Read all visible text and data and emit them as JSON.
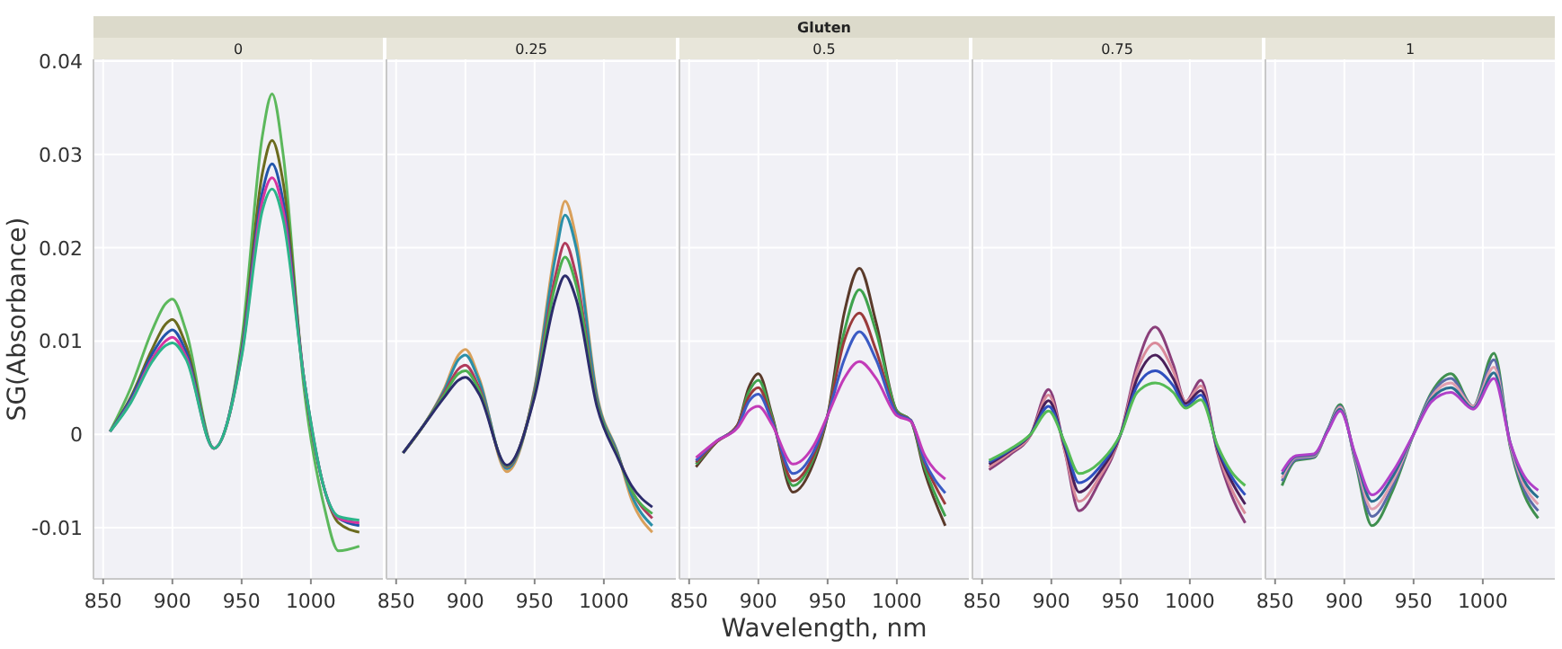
{
  "chart_data": [
    {
      "type": "line",
      "title": "0",
      "annotations": [
        "Gluten"
      ],
      "ylabel": "SG(Absorbance)",
      "x": [
        855,
        870,
        885,
        895,
        900,
        910,
        930,
        950,
        965,
        972,
        980,
        995,
        1010,
        1020,
        1035
      ],
      "xlim": [
        843,
        1052
      ],
      "xticks": [
        850,
        900,
        950,
        1000
      ],
      "ylim": [
        -0.0155,
        0.0402
      ],
      "yticks": [
        -0.01,
        0,
        0.01,
        0.02,
        0.03,
        0.04
      ],
      "grid": true,
      "series": [
        {
          "color": "#5cb85c",
          "values": [
            0.0003,
            0.005,
            0.011,
            0.014,
            0.0145,
            0.011,
            -0.0015,
            0.01,
            0.032,
            0.0365,
            0.03,
            0.005,
            -0.008,
            -0.0125,
            -0.012
          ]
        },
        {
          "color": "#6b6b1f",
          "values": [
            0.0003,
            0.004,
            0.009,
            0.0118,
            0.0123,
            0.0095,
            -0.0015,
            0.009,
            0.028,
            0.0315,
            0.027,
            0.006,
            -0.006,
            -0.0095,
            -0.0105
          ]
        },
        {
          "color": "#2255aa",
          "values": [
            0.0003,
            0.0038,
            0.0085,
            0.0107,
            0.0112,
            0.0088,
            -0.0015,
            0.0088,
            0.026,
            0.029,
            0.025,
            0.006,
            -0.006,
            -0.009,
            -0.0098
          ]
        },
        {
          "color": "#d633a0",
          "values": [
            0.0003,
            0.0035,
            0.008,
            0.01,
            0.0104,
            0.0083,
            -0.0015,
            0.0085,
            0.025,
            0.0275,
            0.024,
            0.006,
            -0.006,
            -0.009,
            -0.0095
          ]
        },
        {
          "color": "#2bb58a",
          "values": [
            0.0003,
            0.0034,
            0.0077,
            0.0095,
            0.0098,
            0.008,
            -0.0015,
            0.0083,
            0.024,
            0.0263,
            0.023,
            0.006,
            -0.006,
            -0.0088,
            -0.0092
          ]
        }
      ]
    },
    {
      "type": "line",
      "title": "0.25",
      "tick_labels": "x",
      "x": [
        855,
        870,
        885,
        895,
        900,
        910,
        930,
        950,
        965,
        972,
        980,
        995,
        1010,
        1020,
        1035
      ],
      "xlim": [
        843,
        1052
      ],
      "xticks": [
        850,
        900,
        950,
        1000
      ],
      "ylim": [
        -0.0155,
        0.0402
      ],
      "yticks": [
        -0.01,
        0,
        0.01,
        0.02,
        0.03,
        0.04
      ],
      "grid": true,
      "series": [
        {
          "color": "#d9a05b",
          "values": [
            -0.002,
            0.001,
            0.005,
            0.0085,
            0.0091,
            0.006,
            -0.004,
            0.005,
            0.02,
            0.025,
            0.021,
            0.0043,
            -0.002,
            -0.007,
            -0.0105
          ]
        },
        {
          "color": "#2a8fa8",
          "values": [
            -0.002,
            0.001,
            0.0048,
            0.008,
            0.0085,
            0.0057,
            -0.0037,
            0.0048,
            0.019,
            0.0235,
            0.02,
            0.004,
            -0.002,
            -0.0065,
            -0.0098
          ]
        },
        {
          "color": "#b03a5b",
          "values": [
            -0.002,
            0.001,
            0.0045,
            0.007,
            0.0074,
            0.005,
            -0.0035,
            0.0045,
            0.017,
            0.0205,
            0.017,
            0.0035,
            -0.0022,
            -0.006,
            -0.009
          ]
        },
        {
          "color": "#4caf50",
          "values": [
            -0.002,
            0.001,
            0.0043,
            0.0065,
            0.0068,
            0.0047,
            -0.0034,
            0.0043,
            0.016,
            0.019,
            0.016,
            0.0033,
            -0.0023,
            -0.006,
            -0.0085
          ]
        },
        {
          "color": "#2c2c6c",
          "values": [
            -0.002,
            0.001,
            0.004,
            0.0058,
            0.0061,
            0.0043,
            -0.0033,
            0.004,
            0.0145,
            0.017,
            0.0145,
            0.003,
            -0.0025,
            -0.0055,
            -0.0078
          ]
        }
      ]
    },
    {
      "type": "line",
      "title": "0.5",
      "xlabel": "Wavelength, nm",
      "tick_labels": "x",
      "x": [
        855,
        870,
        885,
        893,
        900,
        910,
        925,
        940,
        950,
        962,
        973,
        985,
        1000,
        1010,
        1020,
        1035
      ],
      "xlim": [
        843,
        1052
      ],
      "xticks": [
        850,
        900,
        950,
        1000
      ],
      "ylim": [
        -0.0155,
        0.0402
      ],
      "yticks": [
        -0.01,
        0,
        0.01,
        0.02,
        0.03,
        0.04
      ],
      "grid": true,
      "series": [
        {
          "color": "#5a3a2a",
          "values": [
            -0.0035,
            -0.0008,
            0.001,
            0.005,
            0.0065,
            0.002,
            -0.0062,
            -0.003,
            0.002,
            0.013,
            0.0178,
            0.012,
            0.0025,
            0.0015,
            -0.004,
            -0.0098
          ]
        },
        {
          "color": "#3fa34d",
          "values": [
            -0.0032,
            -0.0008,
            0.001,
            0.0045,
            0.0058,
            0.0018,
            -0.0055,
            -0.0025,
            0.002,
            0.011,
            0.0155,
            0.011,
            0.0025,
            0.0015,
            -0.0035,
            -0.0088
          ]
        },
        {
          "color": "#9a3b3b",
          "values": [
            -0.003,
            -0.0008,
            0.001,
            0.004,
            0.005,
            0.0015,
            -0.005,
            -0.0022,
            0.002,
            0.01,
            0.013,
            0.009,
            0.0023,
            0.0015,
            -0.003,
            -0.0075
          ]
        },
        {
          "color": "#3b5bc4",
          "values": [
            -0.0028,
            -0.0007,
            0.0008,
            0.0035,
            0.0043,
            0.0013,
            -0.0042,
            -0.0018,
            0.002,
            0.008,
            0.011,
            0.008,
            0.0022,
            0.0015,
            -0.0028,
            -0.0063
          ]
        },
        {
          "color": "#c23bb8",
          "values": [
            -0.0025,
            -0.0007,
            0.0007,
            0.0025,
            0.003,
            0.001,
            -0.0032,
            -0.0012,
            0.002,
            0.006,
            0.0078,
            0.006,
            0.002,
            0.0014,
            -0.0022,
            -0.0048
          ]
        }
      ]
    },
    {
      "type": "line",
      "title": "0.75",
      "tick_labels": "x",
      "x": [
        855,
        870,
        885,
        898,
        910,
        920,
        935,
        950,
        962,
        975,
        988,
        997,
        1008,
        1020,
        1030,
        1040
      ],
      "xlim": [
        843,
        1052
      ],
      "xticks": [
        850,
        900,
        950,
        1000
      ],
      "ylim": [
        -0.0155,
        0.0402
      ],
      "yticks": [
        -0.01,
        0,
        0.01,
        0.02,
        0.03,
        0.04
      ],
      "grid": true,
      "series": [
        {
          "color": "#8a3f7a",
          "values": [
            -0.0038,
            -0.0022,
            -0.0001,
            0.0048,
            -0.002,
            -0.0082,
            -0.005,
            0,
            0.0075,
            0.0115,
            0.0075,
            0.0035,
            0.0058,
            -0.002,
            -0.0065,
            -0.0095
          ]
        },
        {
          "color": "#d98a9a",
          "values": [
            -0.0035,
            -0.002,
            -0.0001,
            0.0042,
            -0.002,
            -0.0072,
            -0.0045,
            0,
            0.0068,
            0.0098,
            0.0068,
            0.0035,
            0.0052,
            -0.0018,
            -0.0058,
            -0.0085
          ]
        },
        {
          "color": "#4a1f5a",
          "values": [
            -0.0032,
            -0.0018,
            0,
            0.0036,
            -0.0015,
            -0.0062,
            -0.004,
            0,
            0.006,
            0.0085,
            0.006,
            0.0033,
            0.0047,
            -0.0016,
            -0.005,
            -0.0075
          ]
        },
        {
          "color": "#2f4fbf",
          "values": [
            -0.003,
            -0.0017,
            0,
            0.003,
            -0.0012,
            -0.0052,
            -0.0035,
            0,
            0.0052,
            0.0068,
            0.0052,
            0.003,
            0.0042,
            -0.0014,
            -0.0045,
            -0.0065
          ]
        },
        {
          "color": "#55bb55",
          "values": [
            -0.0028,
            -0.0016,
            0,
            0.0025,
            -0.001,
            -0.0042,
            -0.003,
            0,
            0.0045,
            0.0055,
            0.0045,
            0.0028,
            0.0037,
            -0.0012,
            -0.004,
            -0.0055
          ]
        }
      ]
    },
    {
      "type": "line",
      "title": "1",
      "tick_labels": "x",
      "x": [
        855,
        865,
        878,
        888,
        897,
        908,
        920,
        935,
        950,
        963,
        977,
        993,
        1008,
        1020,
        1030,
        1040
      ],
      "xlim": [
        843,
        1052
      ],
      "xticks": [
        850,
        900,
        950,
        1000
      ],
      "ylim": [
        -0.0155,
        0.0402
      ],
      "yticks": [
        -0.01,
        0,
        0.01,
        0.02,
        0.03,
        0.04
      ],
      "grid": true,
      "series": [
        {
          "color": "#3f8f4f",
          "values": [
            -0.0055,
            -0.0028,
            -0.0025,
            0.0005,
            0.0032,
            -0.003,
            -0.0098,
            -0.006,
            0,
            0.0045,
            0.0065,
            0.003,
            0.0087,
            -0.0015,
            -0.0065,
            -0.009
          ]
        },
        {
          "color": "#5a6aa8",
          "values": [
            -0.005,
            -0.0027,
            -0.0024,
            0.0005,
            0.003,
            -0.0028,
            -0.0088,
            -0.0055,
            0,
            0.0043,
            0.006,
            0.003,
            0.008,
            -0.0013,
            -0.006,
            -0.0082
          ]
        },
        {
          "color": "#e0a0b0",
          "values": [
            -0.0047,
            -0.0025,
            -0.0023,
            0.0004,
            0.0029,
            -0.0026,
            -0.008,
            -0.005,
            0,
            0.004,
            0.0055,
            0.003,
            0.0072,
            -0.0012,
            -0.0055,
            -0.0075
          ]
        },
        {
          "color": "#2a6f8f",
          "values": [
            -0.0043,
            -0.0024,
            -0.0022,
            0.0004,
            0.0027,
            -0.0024,
            -0.0072,
            -0.0045,
            0,
            0.0038,
            0.005,
            0.0028,
            0.0066,
            -0.001,
            -0.005,
            -0.0068
          ]
        },
        {
          "color": "#b040c8",
          "values": [
            -0.004,
            -0.0023,
            -0.0021,
            0.0003,
            0.0025,
            -0.0022,
            -0.0065,
            -0.004,
            0,
            0.0035,
            0.0045,
            0.0027,
            0.006,
            -0.001,
            -0.0045,
            -0.006
          ]
        }
      ]
    }
  ]
}
